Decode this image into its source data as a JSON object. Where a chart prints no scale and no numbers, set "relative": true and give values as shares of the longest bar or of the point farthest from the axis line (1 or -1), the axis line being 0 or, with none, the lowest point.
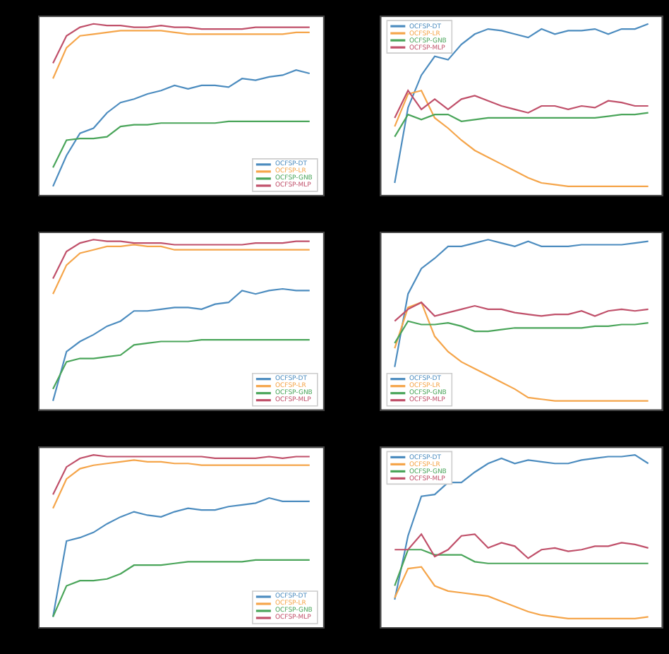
{
  "chart_data": [
    {
      "type": "line",
      "relative": true,
      "legend": "bottom right",
      "categories": [
        null,
        null,
        null,
        null,
        null,
        null,
        null,
        null,
        null,
        null,
        null,
        null,
        null,
        null,
        null,
        null,
        null,
        null,
        null,
        null
      ],
      "series": [
        {
          "name": "OCFSP-DT",
          "color": "#4c8cbf",
          "values": [
            0.05,
            0.23,
            0.36,
            0.39,
            0.48,
            0.54,
            0.56,
            0.59,
            0.61,
            0.64,
            0.62,
            0.64,
            0.64,
            0.63,
            0.68,
            0.67,
            0.69,
            0.7,
            0.73,
            0.71
          ]
        },
        {
          "name": "OCFSP-LR",
          "color": "#f5a54a",
          "values": [
            0.68,
            0.86,
            0.93,
            0.94,
            0.95,
            0.96,
            0.96,
            0.96,
            0.96,
            0.95,
            0.94,
            0.94,
            0.94,
            0.94,
            0.94,
            0.94,
            0.94,
            0.94,
            0.95,
            0.95
          ]
        },
        {
          "name": "OCFSP-GNB",
          "color": "#4aa55a",
          "values": [
            0.16,
            0.32,
            0.33,
            0.33,
            0.34,
            0.4,
            0.41,
            0.41,
            0.42,
            0.42,
            0.42,
            0.42,
            0.42,
            0.43,
            0.43,
            0.43,
            0.43,
            0.43,
            0.43,
            0.43
          ]
        },
        {
          "name": "OCFSP-MLP",
          "color": "#c0506a",
          "values": [
            0.77,
            0.93,
            0.98,
            1.0,
            0.99,
            0.99,
            0.98,
            0.98,
            0.99,
            0.98,
            0.98,
            0.97,
            0.97,
            0.97,
            0.97,
            0.98,
            0.98,
            0.98,
            0.98,
            0.98
          ]
        }
      ]
    },
    {
      "type": "line",
      "relative": true,
      "legend": "top left",
      "categories": [
        null,
        null,
        null,
        null,
        null,
        null,
        null,
        null,
        null,
        null,
        null,
        null,
        null,
        null,
        null,
        null,
        null,
        null,
        null,
        null
      ],
      "series": [
        {
          "name": "OCFSP-DT",
          "color": "#4c8cbf",
          "values": [
            0.07,
            0.51,
            0.7,
            0.81,
            0.79,
            0.88,
            0.94,
            0.97,
            0.96,
            0.94,
            0.92,
            0.97,
            0.94,
            0.96,
            0.96,
            0.97,
            0.94,
            0.97,
            0.97,
            1.0
          ]
        },
        {
          "name": "OCFSP-LR",
          "color": "#f5a54a",
          "values": [
            0.4,
            0.59,
            0.61,
            0.45,
            0.39,
            0.32,
            0.26,
            0.22,
            0.18,
            0.14,
            0.1,
            0.07,
            0.06,
            0.05,
            0.05,
            0.05,
            0.05,
            0.05,
            0.05,
            0.05
          ]
        },
        {
          "name": "OCFSP-GNB",
          "color": "#4aa55a",
          "values": [
            0.34,
            0.47,
            0.44,
            0.47,
            0.47,
            0.43,
            0.44,
            0.45,
            0.45,
            0.45,
            0.45,
            0.45,
            0.45,
            0.45,
            0.45,
            0.45,
            0.46,
            0.47,
            0.47,
            0.48
          ]
        },
        {
          "name": "OCFSP-MLP",
          "color": "#c0506a",
          "values": [
            0.45,
            0.61,
            0.5,
            0.56,
            0.5,
            0.56,
            0.58,
            0.55,
            0.52,
            0.5,
            0.48,
            0.52,
            0.52,
            0.5,
            0.52,
            0.51,
            0.55,
            0.54,
            0.52,
            0.52
          ]
        }
      ]
    },
    {
      "type": "line",
      "relative": true,
      "legend": "bottom right",
      "categories": [
        null,
        null,
        null,
        null,
        null,
        null,
        null,
        null,
        null,
        null,
        null,
        null,
        null,
        null,
        null,
        null,
        null,
        null,
        null,
        null
      ],
      "series": [
        {
          "name": "OCFSP-DT",
          "color": "#4c8cbf",
          "values": [
            0.05,
            0.34,
            0.4,
            0.44,
            0.49,
            0.52,
            0.58,
            0.58,
            0.59,
            0.6,
            0.6,
            0.59,
            0.62,
            0.63,
            0.7,
            0.68,
            0.7,
            0.71,
            0.7,
            0.7
          ]
        },
        {
          "name": "OCFSP-LR",
          "color": "#f5a54a",
          "values": [
            0.68,
            0.85,
            0.92,
            0.94,
            0.96,
            0.96,
            0.97,
            0.96,
            0.96,
            0.94,
            0.94,
            0.94,
            0.94,
            0.94,
            0.94,
            0.94,
            0.94,
            0.94,
            0.94,
            0.94
          ]
        },
        {
          "name": "OCFSP-GNB",
          "color": "#4aa55a",
          "values": [
            0.12,
            0.28,
            0.3,
            0.3,
            0.31,
            0.32,
            0.38,
            0.39,
            0.4,
            0.4,
            0.4,
            0.41,
            0.41,
            0.41,
            0.41,
            0.41,
            0.41,
            0.41,
            0.41,
            0.41
          ]
        },
        {
          "name": "OCFSP-MLP",
          "color": "#c0506a",
          "values": [
            0.77,
            0.93,
            0.98,
            1.0,
            0.99,
            0.99,
            0.98,
            0.98,
            0.98,
            0.97,
            0.97,
            0.97,
            0.97,
            0.97,
            0.97,
            0.98,
            0.98,
            0.98,
            0.99,
            0.99
          ]
        }
      ]
    },
    {
      "type": "line",
      "relative": true,
      "legend": "bottom left",
      "categories": [
        null,
        null,
        null,
        null,
        null,
        null,
        null,
        null,
        null,
        null,
        null,
        null,
        null,
        null,
        null,
        null,
        null,
        null,
        null,
        null
      ],
      "series": [
        {
          "name": "OCFSP-DT",
          "color": "#4c8cbf",
          "values": [
            0.25,
            0.68,
            0.83,
            0.89,
            0.96,
            0.96,
            0.98,
            1.0,
            0.98,
            0.96,
            0.99,
            0.96,
            0.96,
            0.96,
            0.97,
            0.97,
            0.97,
            0.97,
            0.98,
            0.99
          ]
        },
        {
          "name": "OCFSP-LR",
          "color": "#f5a54a",
          "values": [
            0.36,
            0.6,
            0.63,
            0.43,
            0.34,
            0.28,
            0.24,
            0.2,
            0.16,
            0.12,
            0.07,
            0.06,
            0.05,
            0.05,
            0.05,
            0.05,
            0.05,
            0.05,
            0.05,
            0.05
          ]
        },
        {
          "name": "OCFSP-GNB",
          "color": "#4aa55a",
          "values": [
            0.39,
            0.52,
            0.5,
            0.5,
            0.51,
            0.49,
            0.46,
            0.46,
            0.47,
            0.48,
            0.48,
            0.48,
            0.48,
            0.48,
            0.48,
            0.49,
            0.49,
            0.5,
            0.5,
            0.51
          ]
        },
        {
          "name": "OCFSP-MLP",
          "color": "#c0506a",
          "values": [
            0.52,
            0.59,
            0.63,
            0.55,
            0.57,
            0.59,
            0.61,
            0.59,
            0.59,
            0.57,
            0.56,
            0.55,
            0.56,
            0.56,
            0.58,
            0.55,
            0.58,
            0.59,
            0.58,
            0.59
          ]
        }
      ]
    },
    {
      "type": "line",
      "relative": true,
      "legend": "bottom right",
      "categories": [
        null,
        null,
        null,
        null,
        null,
        null,
        null,
        null,
        null,
        null,
        null,
        null,
        null,
        null,
        null,
        null,
        null,
        null,
        null,
        null
      ],
      "series": [
        {
          "name": "OCFSP-DT",
          "color": "#4c8cbf",
          "values": [
            0.06,
            0.5,
            0.52,
            0.55,
            0.6,
            0.64,
            0.67,
            0.65,
            0.64,
            0.67,
            0.69,
            0.68,
            0.68,
            0.7,
            0.71,
            0.72,
            0.75,
            0.73,
            0.73,
            0.73
          ]
        },
        {
          "name": "OCFSP-LR",
          "color": "#f5a54a",
          "values": [
            0.69,
            0.86,
            0.92,
            0.94,
            0.95,
            0.96,
            0.97,
            0.96,
            0.96,
            0.95,
            0.95,
            0.94,
            0.94,
            0.94,
            0.94,
            0.94,
            0.94,
            0.94,
            0.94,
            0.94
          ]
        },
        {
          "name": "OCFSP-GNB",
          "color": "#4aa55a",
          "values": [
            0.06,
            0.24,
            0.27,
            0.27,
            0.28,
            0.31,
            0.36,
            0.36,
            0.36,
            0.37,
            0.38,
            0.38,
            0.38,
            0.38,
            0.38,
            0.39,
            0.39,
            0.39,
            0.39,
            0.39
          ]
        },
        {
          "name": "OCFSP-MLP",
          "color": "#c0506a",
          "values": [
            0.77,
            0.93,
            0.98,
            1.0,
            0.99,
            0.99,
            0.99,
            0.99,
            0.99,
            0.99,
            0.99,
            0.99,
            0.98,
            0.98,
            0.98,
            0.98,
            0.99,
            0.98,
            0.99,
            0.99
          ]
        }
      ]
    },
    {
      "type": "line",
      "relative": true,
      "legend": "top left",
      "categories": [
        null,
        null,
        null,
        null,
        null,
        null,
        null,
        null,
        null,
        null,
        null,
        null,
        null,
        null,
        null,
        null,
        null,
        null,
        null,
        null
      ],
      "series": [
        {
          "name": "OCFSP-DT",
          "color": "#4c8cbf",
          "values": [
            0.16,
            0.53,
            0.76,
            0.77,
            0.84,
            0.84,
            0.9,
            0.95,
            0.98,
            0.95,
            0.97,
            0.96,
            0.95,
            0.95,
            0.97,
            0.98,
            0.99,
            0.99,
            1.0,
            0.95
          ]
        },
        {
          "name": "OCFSP-LR",
          "color": "#f5a54a",
          "values": [
            0.17,
            0.34,
            0.35,
            0.24,
            0.21,
            0.2,
            0.19,
            0.18,
            0.15,
            0.12,
            0.09,
            0.07,
            0.06,
            0.05,
            0.05,
            0.05,
            0.05,
            0.05,
            0.05,
            0.06
          ]
        },
        {
          "name": "OCFSP-GNB",
          "color": "#4aa55a",
          "values": [
            0.24,
            0.45,
            0.45,
            0.42,
            0.42,
            0.42,
            0.38,
            0.37,
            0.37,
            0.37,
            0.37,
            0.37,
            0.37,
            0.37,
            0.37,
            0.37,
            0.37,
            0.37,
            0.37,
            0.37
          ]
        },
        {
          "name": "OCFSP-MLP",
          "color": "#c0506a",
          "values": [
            0.45,
            0.45,
            0.54,
            0.41,
            0.45,
            0.53,
            0.54,
            0.46,
            0.49,
            0.47,
            0.4,
            0.45,
            0.46,
            0.44,
            0.45,
            0.47,
            0.47,
            0.49,
            0.48,
            0.46
          ]
        }
      ]
    }
  ]
}
